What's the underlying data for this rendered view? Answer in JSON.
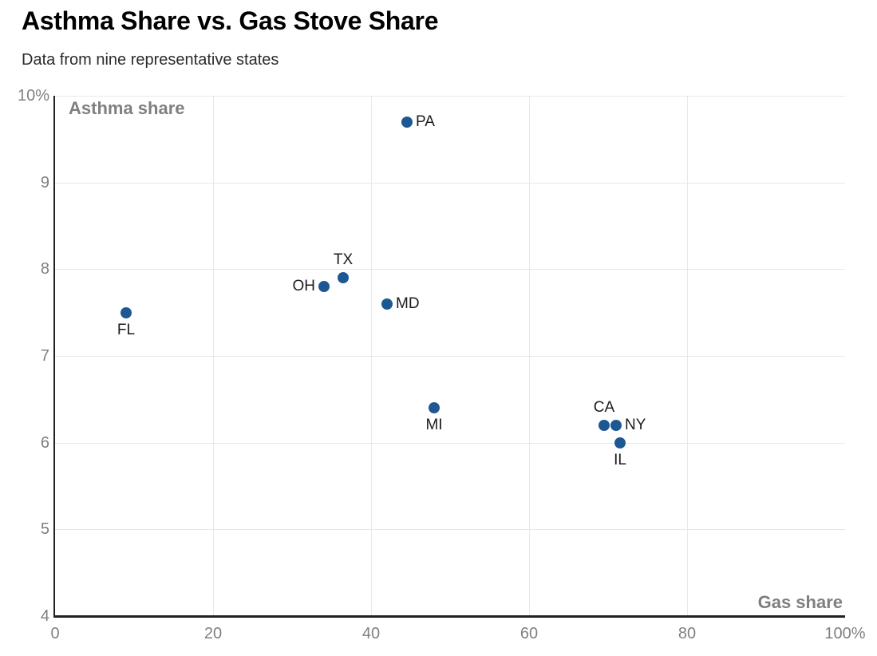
{
  "header": {
    "title": "Asthma Share vs. Gas Stove Share",
    "subtitle": "Data from nine representative states"
  },
  "chart_data": {
    "type": "scatter",
    "title": "Asthma Share vs. Gas Stove Share",
    "subtitle": "Data from nine representative states",
    "xlabel": "Gas share",
    "ylabel": "Asthma share",
    "xlim": [
      0,
      100
    ],
    "ylim": [
      4,
      10
    ],
    "grid": true,
    "legend_position": "none",
    "x_ticks": [
      {
        "value": 0,
        "label": "0"
      },
      {
        "value": 20,
        "label": "20"
      },
      {
        "value": 40,
        "label": "40"
      },
      {
        "value": 60,
        "label": "60"
      },
      {
        "value": 80,
        "label": "80"
      },
      {
        "value": 100,
        "label": "100%"
      }
    ],
    "y_ticks": [
      {
        "value": 10,
        "label": "10%"
      },
      {
        "value": 9,
        "label": "9"
      },
      {
        "value": 8,
        "label": "8"
      },
      {
        "value": 7,
        "label": "7"
      },
      {
        "value": 6,
        "label": "6"
      },
      {
        "value": 5,
        "label": "5"
      },
      {
        "value": 4,
        "label": "4"
      }
    ],
    "x_gridlines": [
      20,
      40,
      60,
      80
    ],
    "y_gridlines": [
      5,
      6,
      7,
      8,
      9,
      10
    ],
    "points": [
      {
        "state": "FL",
        "x": 9,
        "y": 7.5,
        "label_position": "below"
      },
      {
        "state": "OH",
        "x": 34,
        "y": 7.8,
        "label_position": "left"
      },
      {
        "state": "TX",
        "x": 36.5,
        "y": 7.9,
        "label_position": "above"
      },
      {
        "state": "MD",
        "x": 42,
        "y": 7.6,
        "label_position": "right"
      },
      {
        "state": "PA",
        "x": 44.5,
        "y": 9.7,
        "label_position": "right"
      },
      {
        "state": "MI",
        "x": 48,
        "y": 6.4,
        "label_position": "below"
      },
      {
        "state": "CA",
        "x": 69.5,
        "y": 6.2,
        "label_position": "above"
      },
      {
        "state": "NY",
        "x": 71,
        "y": 6.2,
        "label_position": "right"
      },
      {
        "state": "IL",
        "x": 71.5,
        "y": 6.0,
        "label_position": "below"
      }
    ],
    "colors": {
      "point": "#1d5893",
      "axis": "#202124",
      "gridline": "#e8e8e8",
      "tick_label": "#808080",
      "axis_title": "#7f7f7f",
      "point_label": "#1c1c1c",
      "title": "#000000",
      "subtitle": "#2b2b2b"
    }
  }
}
